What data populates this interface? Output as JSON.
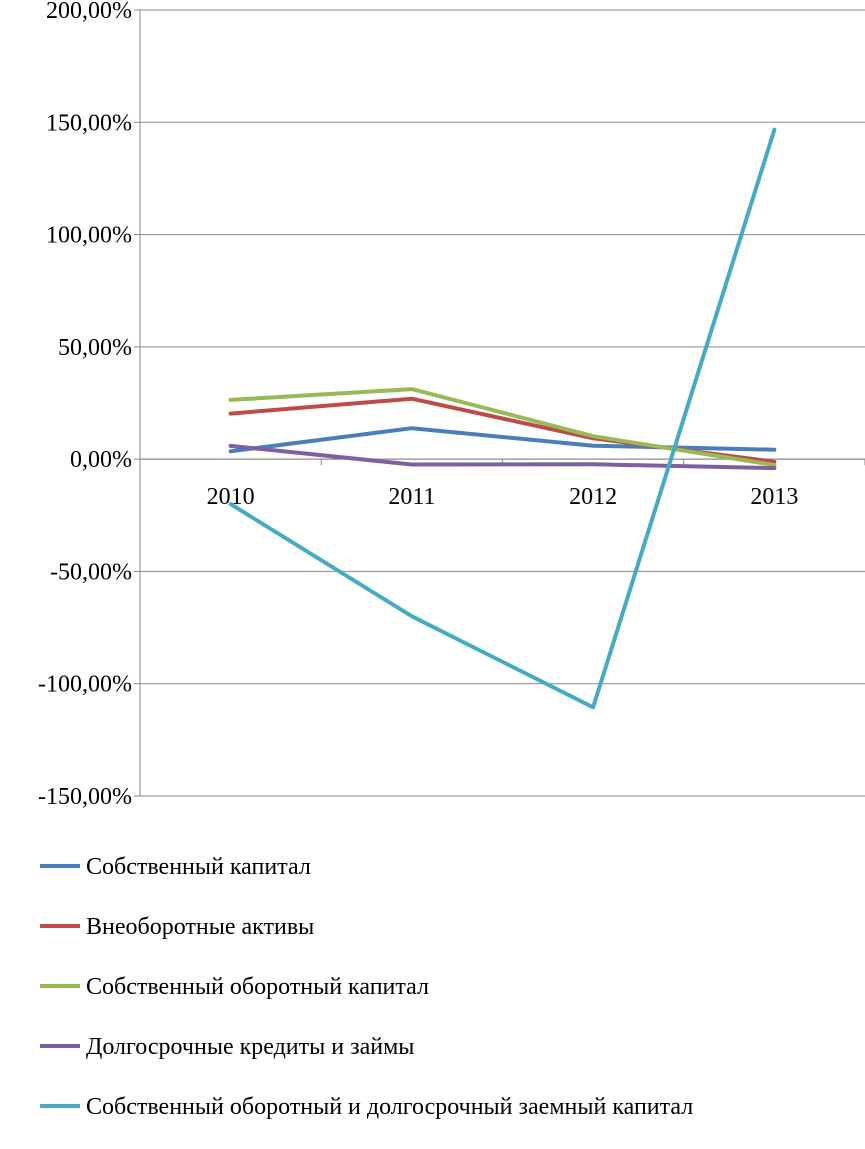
{
  "chart_data": {
    "type": "line",
    "title": "",
    "xlabel": "",
    "ylabel": "",
    "categories": [
      "2010",
      "2011",
      "2012",
      "2013"
    ],
    "ylim": [
      -150,
      200
    ],
    "yticks": [
      200,
      150,
      100,
      50,
      0,
      -50,
      -100,
      -150
    ],
    "ytick_labels": [
      "200,00%",
      "150,00%",
      "100,00%",
      "50,00%",
      "0,00%",
      "-50,00%",
      "-100,00%",
      "-150,00%"
    ],
    "grid": true,
    "legend_position": "bottom",
    "series": [
      {
        "name": "Собственный капитал",
        "color": "#4a7ebb",
        "values": [
          3.5,
          13.8,
          6.0,
          4.2
        ]
      },
      {
        "name": "Внеоборотные активы",
        "color": "#be4b48",
        "values": [
          20.3,
          26.9,
          9.3,
          -1.2
        ]
      },
      {
        "name": "Собственный оборотный капитал",
        "color": "#98b954",
        "values": [
          26.4,
          31.2,
          10.2,
          -2.6
        ]
      },
      {
        "name": "Долгосрочные кредиты и займы",
        "color": "#7d60a0",
        "values": [
          5.9,
          -2.4,
          -2.3,
          -4.0
        ]
      },
      {
        "name": "Собственный оборотный и долгосрочный заемный капитал",
        "color": "#46aac5",
        "values": [
          -20.0,
          -70.0,
          -110.5,
          146.7
        ]
      }
    ]
  }
}
